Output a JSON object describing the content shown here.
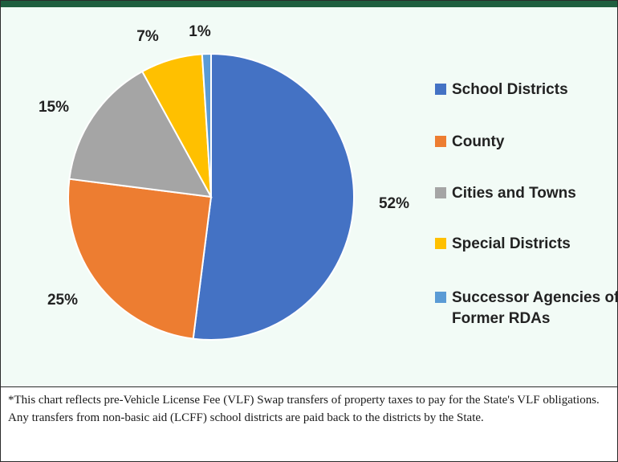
{
  "chart_data": {
    "type": "pie",
    "categories": [
      "School Districts",
      "County",
      "Cities and Towns",
      "Special Districts",
      "Successor Agencies of Former RDAs"
    ],
    "values": [
      52,
      25,
      15,
      7,
      1
    ],
    "labels": [
      "52%",
      "25%",
      "15%",
      "7%",
      "1%"
    ],
    "colors": [
      "#4472c4",
      "#ed7d31",
      "#a5a5a5",
      "#ffc000",
      "#5b9bd5"
    ],
    "legend_position": "right"
  },
  "footnote": "*This chart reflects pre-Vehicle License Fee (VLF) Swap transfers of property taxes to pay for the State's VLF obligations. Any transfers from non-basic aid (LCFF) school districts are paid back to the districts by the State."
}
